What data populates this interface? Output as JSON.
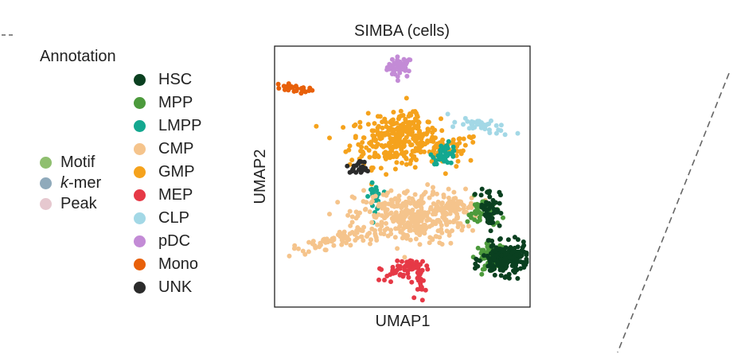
{
  "legend": {
    "title": "Annotation",
    "feature_items": [
      {
        "label": "Motif",
        "color": "#8fbf6f"
      },
      {
        "prefix": "k",
        "label": "-mer",
        "color": "#8faabb"
      },
      {
        "label": "Peak",
        "color": "#e6c8cf"
      }
    ],
    "cell_items": [
      {
        "label": "HSC",
        "color": "#0a4020"
      },
      {
        "label": "MPP",
        "color": "#4c9a3c"
      },
      {
        "label": "LMPP",
        "color": "#14a890"
      },
      {
        "label": "CMP",
        "color": "#f5c48c"
      },
      {
        "label": "GMP",
        "color": "#f5a21c"
      },
      {
        "label": "MEP",
        "color": "#e63946"
      },
      {
        "label": "CLP",
        "color": "#a3d8e6"
      },
      {
        "label": "pDC",
        "color": "#c38bd6"
      },
      {
        "label": "Mono",
        "color": "#e8600a"
      },
      {
        "label": "UNK",
        "color": "#2b2b2b"
      }
    ]
  },
  "chart_data": {
    "type": "scatter",
    "title": "SIMBA (cells)",
    "xlabel": "UMAP1",
    "ylabel": "UMAP2",
    "xlim": [
      0,
      10
    ],
    "ylim": [
      0,
      10
    ],
    "grid": false,
    "legend_position": "left",
    "series": [
      {
        "name": "pDC",
        "color": "#c38bd6",
        "clusters": [
          {
            "cx": 4.9,
            "cy": 9.3,
            "sx": 0.25,
            "sy": 0.2,
            "n": 45
          }
        ]
      },
      {
        "name": "Mono",
        "color": "#e8600a",
        "clusters": [
          {
            "cx": 0.7,
            "cy": 8.45,
            "sx": 0.4,
            "sy": 0.07,
            "n": 28,
            "angle": -0.12
          }
        ]
      },
      {
        "name": "GMP",
        "color": "#f5a21c",
        "clusters": [
          {
            "cx": 4.7,
            "cy": 6.4,
            "sx": 0.9,
            "sy": 0.5,
            "n": 260
          },
          {
            "cx": 5.3,
            "cy": 7.1,
            "sx": 0.3,
            "sy": 0.3,
            "n": 40
          },
          {
            "cx": 6.4,
            "cy": 6.1,
            "sx": 0.9,
            "sy": 0.3,
            "n": 60
          }
        ]
      },
      {
        "name": "CLP",
        "color": "#a3d8e6",
        "clusters": [
          {
            "cx": 8.3,
            "cy": 6.95,
            "sx": 0.55,
            "sy": 0.12,
            "n": 40,
            "angle": -0.25
          }
        ]
      },
      {
        "name": "LMPP",
        "color": "#14a890",
        "clusters": [
          {
            "cx": 6.7,
            "cy": 5.9,
            "sx": 0.25,
            "sy": 0.2,
            "n": 45
          },
          {
            "cx": 3.9,
            "cy": 4.2,
            "sx": 0.12,
            "sy": 0.25,
            "n": 25
          }
        ]
      },
      {
        "name": "UNK",
        "color": "#2b2b2b",
        "clusters": [
          {
            "cx": 3.2,
            "cy": 5.3,
            "sx": 0.25,
            "sy": 0.08,
            "n": 18
          },
          {
            "cx": 3.3,
            "cy": 5.5,
            "sx": 0.08,
            "sy": 0.15,
            "n": 8
          }
        ]
      },
      {
        "name": "CMP",
        "color": "#f5c48c",
        "clusters": [
          {
            "cx": 5.3,
            "cy": 3.4,
            "sx": 1.1,
            "sy": 0.55,
            "n": 330
          },
          {
            "cx": 2.4,
            "cy": 2.55,
            "sx": 0.9,
            "sy": 0.14,
            "n": 70,
            "angle": 0.25
          },
          {
            "cx": 7.0,
            "cy": 3.8,
            "sx": 0.5,
            "sy": 0.22,
            "n": 50
          }
        ]
      },
      {
        "name": "MEP",
        "color": "#e63946",
        "clusters": [
          {
            "cx": 5.4,
            "cy": 1.5,
            "sx": 0.35,
            "sy": 0.12,
            "n": 40
          },
          {
            "cx": 5.75,
            "cy": 0.8,
            "sx": 0.1,
            "sy": 0.32,
            "n": 22
          },
          {
            "cx": 4.6,
            "cy": 1.2,
            "sx": 0.25,
            "sy": 0.15,
            "n": 18
          }
        ]
      },
      {
        "name": "MPP",
        "color": "#4c9a3c",
        "clusters": [
          {
            "cx": 8.55,
            "cy": 1.9,
            "sx": 0.3,
            "sy": 0.25,
            "n": 80
          },
          {
            "cx": 8.2,
            "cy": 3.6,
            "sx": 0.3,
            "sy": 0.3,
            "n": 40
          }
        ]
      },
      {
        "name": "HSC",
        "color": "#0a4020",
        "clusters": [
          {
            "cx": 9.1,
            "cy": 1.75,
            "sx": 0.45,
            "sy": 0.3,
            "n": 200
          },
          {
            "cx": 8.5,
            "cy": 3.8,
            "sx": 0.2,
            "sy": 0.4,
            "n": 60
          }
        ]
      }
    ]
  }
}
